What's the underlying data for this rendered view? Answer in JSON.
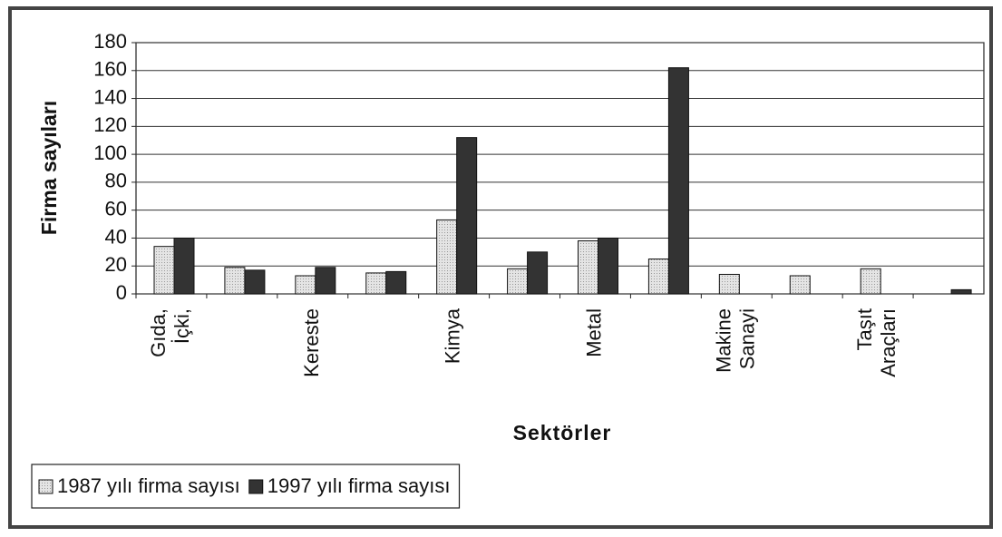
{
  "chart_data": {
    "type": "bar",
    "ylabel": "Firma sayıları",
    "xlabel": "Sektörler",
    "categories": [
      "Gıda, İçki,",
      null,
      "Kereste",
      null,
      "Kimya",
      null,
      "Metal",
      null,
      "Makine Sanayi",
      null,
      "Taşıt Araçları",
      null
    ],
    "series": [
      {
        "name": "1987 yılı firma sayısı",
        "color": "#e4e4e4",
        "values": [
          34,
          19,
          13,
          15,
          53,
          18,
          38,
          25,
          14,
          13,
          18,
          null
        ]
      },
      {
        "name": "1997 yılı firma sayısı",
        "color": "#333333",
        "values": [
          40,
          17,
          19,
          16,
          112,
          30,
          40,
          162,
          null,
          null,
          null,
          3
        ]
      }
    ],
    "ylim": [
      0,
      180
    ],
    "yticks": [
      0,
      20,
      40,
      60,
      80,
      100,
      120,
      140,
      160,
      180
    ],
    "grid": true,
    "legend": "bottom-left"
  }
}
